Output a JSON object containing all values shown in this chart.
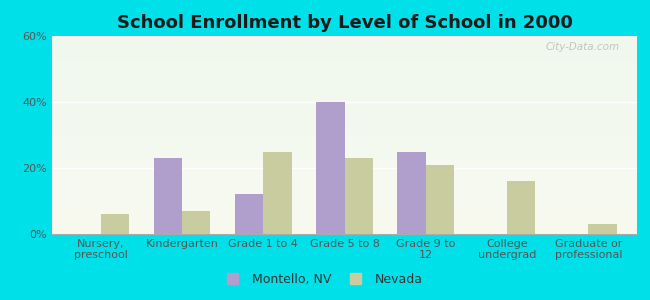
{
  "title": "School Enrollment by Level of School in 2000",
  "categories": [
    "Nursery,\npreschool",
    "Kindergarten",
    "Grade 1 to 4",
    "Grade 5 to 8",
    "Grade 9 to\n12",
    "College\nundergrad",
    "Graduate or\nprofessional"
  ],
  "montello": [
    0,
    23,
    12,
    40,
    25,
    0,
    0
  ],
  "nevada": [
    6,
    7,
    25,
    23,
    21,
    16,
    3
  ],
  "montello_color": "#b09fcc",
  "nevada_color": "#c8cc9f",
  "background_outer": "#00e0e8",
  "background_inner_top": "#f0f8ee",
  "background_inner_bottom": "#f8faf0",
  "ylim": [
    0,
    60
  ],
  "yticks": [
    0,
    20,
    40,
    60
  ],
  "ytick_labels": [
    "0%",
    "20%",
    "40%",
    "60%"
  ],
  "legend_labels": [
    "Montello, NV",
    "Nevada"
  ],
  "title_fontsize": 13,
  "tick_fontsize": 8,
  "legend_fontsize": 9,
  "bar_width": 0.35,
  "watermark": "City-Data.com",
  "xlim_left": -0.6,
  "xlim_right": 6.6
}
